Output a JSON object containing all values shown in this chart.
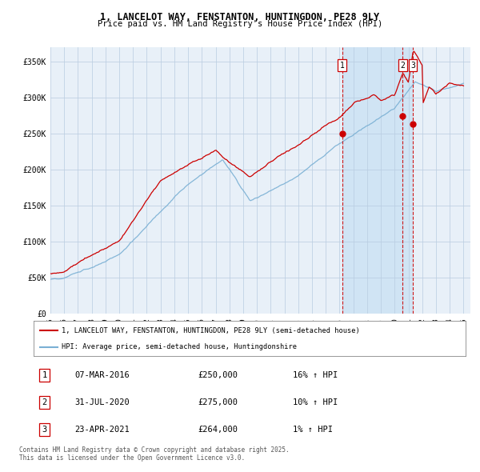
{
  "title": "1, LANCELOT WAY, FENSTANTON, HUNTINGDON, PE28 9LY",
  "subtitle": "Price paid vs. HM Land Registry's House Price Index (HPI)",
  "ylim": [
    0,
    370000
  ],
  "yticks": [
    0,
    50000,
    100000,
    150000,
    200000,
    250000,
    300000,
    350000
  ],
  "ytick_labels": [
    "£0",
    "£50K",
    "£100K",
    "£150K",
    "£200K",
    "£250K",
    "£300K",
    "£350K"
  ],
  "x_start_year": 1995,
  "x_end_year": 2025,
  "red_line_color": "#cc0000",
  "blue_line_color": "#7ab0d4",
  "vline_color": "#cc0000",
  "chart_bg_color": "#e8f0f8",
  "shade_color": "#d0e4f4",
  "sale_markers": [
    {
      "year": 2016.18,
      "price": 250000,
      "label": "1"
    },
    {
      "year": 2020.58,
      "price": 275000,
      "label": "2"
    },
    {
      "year": 2021.31,
      "price": 264000,
      "label": "3"
    }
  ],
  "legend_red": "1, LANCELOT WAY, FENSTANTON, HUNTINGDON, PE28 9LY (semi-detached house)",
  "legend_blue": "HPI: Average price, semi-detached house, Huntingdonshire",
  "table_rows": [
    {
      "num": "1",
      "date": "07-MAR-2016",
      "price": "£250,000",
      "hpi": "16% ↑ HPI"
    },
    {
      "num": "2",
      "date": "31-JUL-2020",
      "price": "£275,000",
      "hpi": "10% ↑ HPI"
    },
    {
      "num": "3",
      "date": "23-APR-2021",
      "price": "£264,000",
      "hpi": "1% ↑ HPI"
    }
  ],
  "footnote": "Contains HM Land Registry data © Crown copyright and database right 2025.\nThis data is licensed under the Open Government Licence v3.0.",
  "grid_color": "#b8cce0",
  "bg_color": "#ffffff"
}
